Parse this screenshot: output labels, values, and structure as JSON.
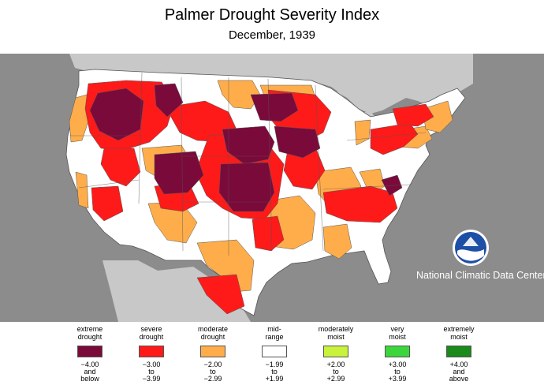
{
  "title": "Palmer Drought Severity Index",
  "subtitle": "December, 1939",
  "credit": "National Climatic Data Center",
  "logo_icon": "noaa-logo-icon",
  "colors": {
    "background": "#8c8c8c",
    "water": "#c8c8c8",
    "extreme": "#7a0a3a",
    "severe": "#ff1a1a",
    "moderate": "#ffad4a",
    "mid": "#ffffff",
    "moist_moderate": "#c8f23c",
    "moist_very": "#3cd63c",
    "moist_extreme": "#1a8a1a"
  },
  "legend": [
    {
      "label": [
        "extreme",
        "drought"
      ],
      "color": "#7a0a3a",
      "range": [
        "−4.00",
        "and",
        "below"
      ]
    },
    {
      "label": [
        "severe",
        "drought"
      ],
      "color": "#ff1a1a",
      "range": [
        "−3.00",
        "to",
        "−3.99"
      ]
    },
    {
      "label": [
        "moderate",
        "drought"
      ],
      "color": "#ffad4a",
      "range": [
        "−2.00",
        "to",
        "−2.99"
      ]
    },
    {
      "label": [
        "mid-",
        "range"
      ],
      "color": "#ffffff",
      "range": [
        "−1.99",
        "to",
        "+1.99"
      ]
    },
    {
      "label": [
        "moderately",
        "moist"
      ],
      "color": "#c8f23c",
      "range": [
        "+2.00",
        "to",
        "+2.99"
      ]
    },
    {
      "label": [
        "very",
        "moist"
      ],
      "color": "#3cd63c",
      "range": [
        "+3.00",
        "to",
        "+3.99"
      ]
    },
    {
      "label": [
        "extremely",
        "moist"
      ],
      "color": "#1a8a1a",
      "range": [
        "+4.00",
        "and",
        "above"
      ]
    }
  ]
}
